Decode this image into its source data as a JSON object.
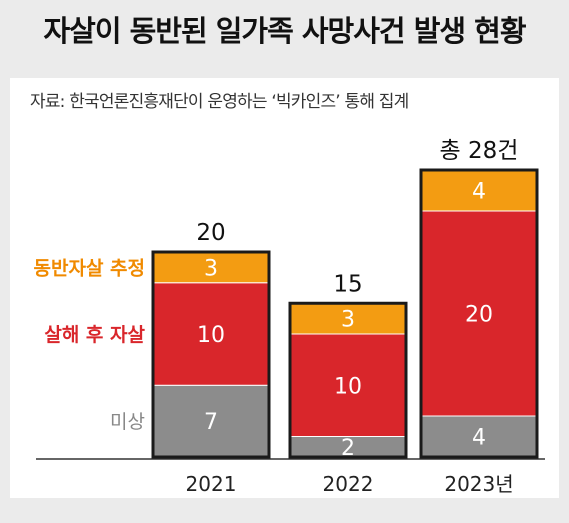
{
  "title": "자살이 동반된 일가족 사망사건 발생 현황",
  "source": "자료: 한국언론진흥재단이 운영하는 ‘빅카인즈’ 통해 집계",
  "colors": {
    "orange": "#f39c12",
    "red": "#d9262b",
    "gray": "#8c8c8c",
    "legend_orange": "#f08a00",
    "legend_red": "#d9262b",
    "legend_gray": "#888888"
  },
  "chart_data": {
    "type": "bar",
    "stacked": true,
    "categories": [
      "2021",
      "2022",
      "2023년"
    ],
    "series": [
      {
        "name": "미상",
        "values": [
          7,
          2,
          4
        ]
      },
      {
        "name": "살해 후 자살",
        "values": [
          10,
          10,
          20
        ]
      },
      {
        "name": "동반자살 추정",
        "values": [
          3,
          3,
          4
        ]
      }
    ],
    "totals": [
      "20",
      "15",
      "총 28건"
    ],
    "title": "자살이 동반된 일가족 사망사건 발생 현황",
    "xlabel": "",
    "ylabel": "",
    "legend_placement": "left"
  }
}
